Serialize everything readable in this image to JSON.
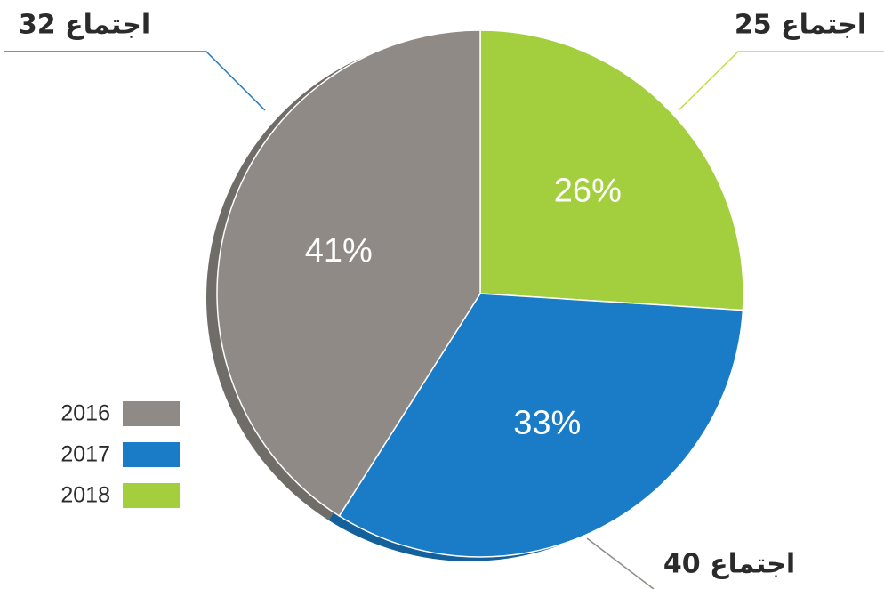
{
  "chart_data": {
    "type": "pie",
    "categories": [
      "2016",
      "2017",
      "2018"
    ],
    "values": [
      41,
      33,
      26
    ],
    "value_labels": [
      "41%",
      "33%",
      "26%"
    ],
    "callouts": [
      "40 اجتماع",
      "32 اجتماع",
      "25 اجتماع"
    ],
    "colors": [
      "#8f8a85",
      "#1a7bc6",
      "#a3cf3e"
    ],
    "legend_position": "bottom-left"
  }
}
